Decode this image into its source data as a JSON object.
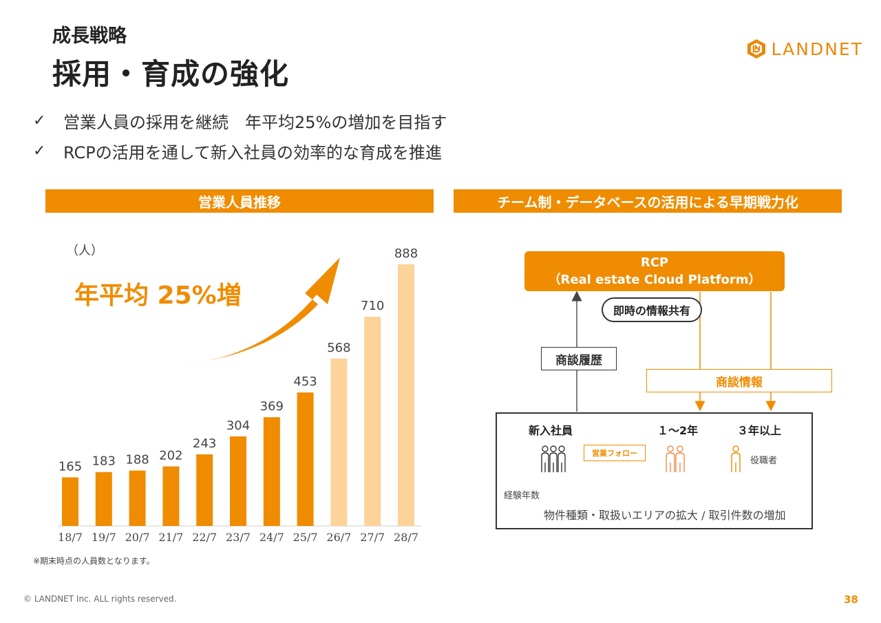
{
  "header": {
    "kicker": "成長戦略",
    "title": "採用・育成の強化",
    "logo_text": "LANDNET",
    "logo_color": "#e8890c"
  },
  "bullets": [
    {
      "check": "✓",
      "text": "営業人員の採用を継続　年平均25%の増加を目指す"
    },
    {
      "check": "✓",
      "text": "RCPの活用を通して新入社員の効率的な育成を推進"
    }
  ],
  "left_panel": {
    "heading": "営業人員推移",
    "growth_label": "年平均 25%増",
    "note": "※期末時点の人員数となります。"
  },
  "chart_data": {
    "type": "bar",
    "ylabel": "（人）",
    "categories": [
      "18/7",
      "19/7",
      "20/7",
      "21/7",
      "22/7",
      "23/7",
      "24/7",
      "25/7",
      "26/7",
      "27/7",
      "28/7"
    ],
    "values": [
      165,
      183,
      188,
      202,
      243,
      304,
      369,
      453,
      568,
      710,
      888
    ],
    "projected_from_index": 8,
    "ylim": [
      0,
      1000
    ],
    "colors": {
      "actual": "#ef8c00",
      "projected": "#fdd39a"
    },
    "grid": false,
    "legend": "none"
  },
  "right_panel": {
    "heading": "チーム制・データベースの活用による早期戦力化",
    "rcp_title": "RCP",
    "rcp_subtitle": "（Real estate Cloud Platform）",
    "pill": "即時の情報共有",
    "history_label": "商談履歴",
    "info_label": "商談情報",
    "columns": [
      "新入社員",
      "１～2年",
      "３年以上"
    ],
    "follow_label": "営業フォロー",
    "role_label": "役職者",
    "experience_label": "経験年数",
    "expansion_label": "物件種類・取扱いエリアの拡大 / 取引件数の増加",
    "icons": [
      "group-people-icon",
      "pair-people-icon",
      "single-person-icon"
    ]
  },
  "footer": {
    "copyright": "© LANDNET Inc. ALL rights reserved.",
    "page": "38"
  }
}
